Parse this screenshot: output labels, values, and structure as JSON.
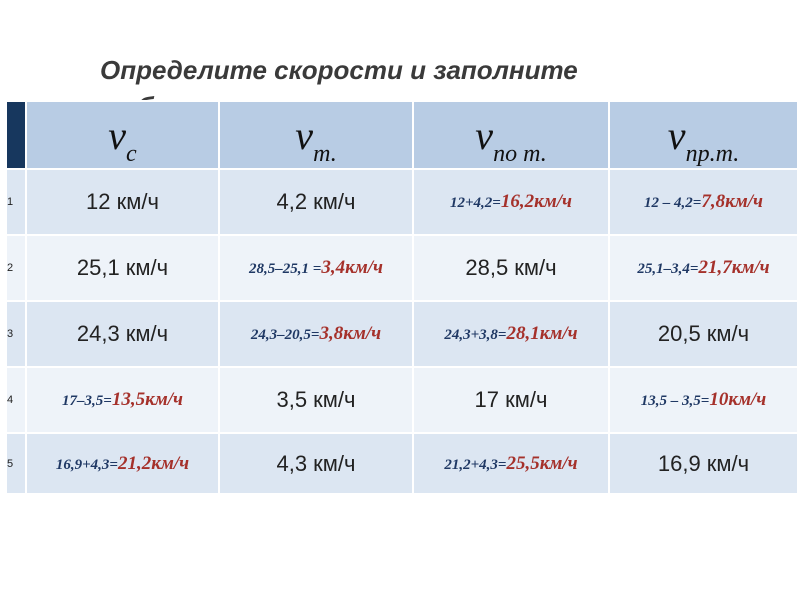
{
  "title": "Определите скорости и заполните таблицу",
  "table": {
    "header": [
      {
        "symbol": "v",
        "sub": "с"
      },
      {
        "symbol": "v",
        "sub": "т."
      },
      {
        "symbol": "v",
        "sub": "по т."
      },
      {
        "symbol": "v",
        "sub": "пр.т."
      }
    ],
    "rows": [
      {
        "number": "1",
        "cells": [
          "12 км/ч",
          "4,2 км/ч",
          {
            "expr": "12+4,2=",
            "result": "16,2км/ч"
          },
          {
            "expr": "12 – 4,2=",
            "result": "7,8км/ч"
          }
        ]
      },
      {
        "number": "2",
        "cells": [
          "25,1 км/ч",
          {
            "expr": "28,5–25,1 =",
            "result": "3,4км/ч"
          },
          "28,5 км/ч",
          {
            "expr": "25,1–3,4=",
            "result": "21,7км/ч"
          }
        ]
      },
      {
        "number": "3",
        "cells": [
          "24,3 км/ч",
          {
            "expr": "24,3–20,5=",
            "result": "3,8км/ч"
          },
          {
            "expr": "24,3+3,8=",
            "result": "28,1км/ч"
          },
          "20,5 км/ч"
        ]
      },
      {
        "number": "4",
        "cells": [
          {
            "expr": "17–3,5=",
            "result": "13,5км/ч"
          },
          "3,5 км/ч",
          "17 км/ч",
          {
            "expr": "13,5 – 3,5=",
            "result": "10км/ч"
          }
        ]
      },
      {
        "number": "5",
        "cells": [
          {
            "expr": "16,9+4,3=",
            "result": "21,2км/ч"
          },
          "4,3 км/ч",
          {
            "expr": "21,2+4,3=",
            "result": "25,5км/ч"
          },
          "16,9 км/ч"
        ]
      }
    ]
  }
}
